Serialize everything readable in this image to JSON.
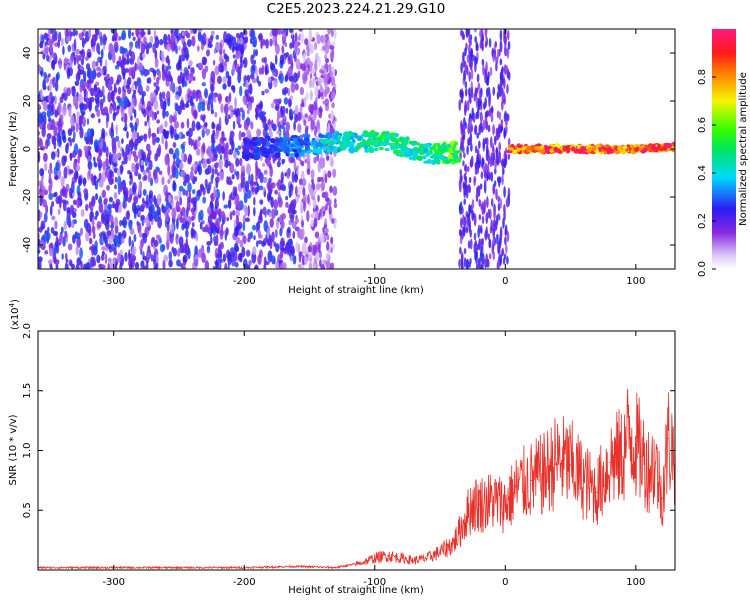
{
  "title": "C2E5.2023.224.21.29.G10",
  "colors": {
    "snr_line": "#e8312a",
    "axis": "#000000",
    "background": "#ffffff"
  },
  "spectrogram": {
    "xlabel": "Height of straight line (km)",
    "ylabel": "Frequency (Hz)",
    "xlim": [
      -358,
      130
    ],
    "ylim": [
      -50,
      50
    ],
    "xticks": [
      -300,
      -200,
      -100,
      0,
      100
    ],
    "xtick_labels": [
      "-300",
      "-200",
      "-100",
      "0",
      "100"
    ],
    "yticks": [
      -40,
      -20,
      0,
      20,
      40
    ],
    "ytick_labels": [
      "-40",
      "-20",
      "0",
      "20",
      "40"
    ]
  },
  "colorbar": {
    "label": "Normalized spectral amplitude",
    "range": [
      0,
      1
    ],
    "ticks": [
      0.0,
      0.2,
      0.4,
      0.6,
      0.8
    ],
    "tick_labels": [
      "0.0",
      "0.2",
      "0.4",
      "0.6",
      "0.8"
    ],
    "colormap": "rainbow (white-violet-blue-cyan-green-yellow-red-magenta)"
  },
  "chart_data": [
    {
      "type": "heatmap",
      "description_of_signal": "Normalized spectral amplitude vs straight-line height and frequency",
      "noise_region_x": [
        -358,
        -130
      ],
      "gap_region_x": [
        -35,
        3
      ],
      "signal_band": [
        {
          "x": -200,
          "freq": 0,
          "amplitude": 0.25
        },
        {
          "x": -170,
          "freq": 1,
          "amplitude": 0.3
        },
        {
          "x": -120,
          "freq": 3,
          "amplitude": 0.45
        },
        {
          "x": -90,
          "freq": 3,
          "amplitude": 0.5
        },
        {
          "x": -60,
          "freq": -2,
          "amplitude": 0.45
        },
        {
          "x": 5,
          "freq": 0,
          "amplitude": 0.9
        },
        {
          "x": 50,
          "freq": 0,
          "amplitude": 0.9
        },
        {
          "x": 100,
          "freq": 0,
          "amplitude": 0.9
        },
        {
          "x": 130,
          "freq": 1,
          "amplitude": 0.9
        }
      ],
      "xlabel": "Height of straight line (km)",
      "ylabel": "Frequency (Hz)",
      "xlim": [
        -358,
        130
      ],
      "ylim": [
        -50,
        50
      ]
    },
    {
      "type": "line",
      "series_color": "#e8312a",
      "xlabel": "Height of straight line (km)",
      "ylabel": "SNR (10 * v/v)",
      "scale_label": "(x10",
      "scale_exponent": "4",
      "scale_close": ")",
      "xlim": [
        -358,
        130
      ],
      "ylim": [
        0,
        2.0
      ],
      "xticks": [
        -300,
        -200,
        -100,
        0,
        100
      ],
      "xtick_labels": [
        "-300",
        "-200",
        "-100",
        "0",
        "100"
      ],
      "yticks": [
        0.5,
        1.0,
        1.5,
        2.0
      ],
      "ytick_labels": [
        "0.5",
        "1.0",
        "1.5",
        "2.0"
      ],
      "x": [
        -358,
        -300,
        -250,
        -200,
        -160,
        -130,
        -110,
        -100,
        -90,
        -80,
        -70,
        -60,
        -50,
        -40,
        -35,
        -30,
        -25,
        -20,
        -10,
        0,
        10,
        20,
        30,
        40,
        50,
        60,
        70,
        80,
        90,
        95,
        100,
        105,
        110,
        115,
        120,
        125,
        130
      ],
      "y": [
        0.02,
        0.02,
        0.02,
        0.02,
        0.03,
        0.02,
        0.06,
        0.1,
        0.12,
        0.1,
        0.08,
        0.1,
        0.15,
        0.22,
        0.32,
        0.45,
        0.55,
        0.55,
        0.58,
        0.55,
        0.7,
        0.75,
        0.8,
        0.92,
        0.88,
        0.75,
        0.65,
        0.9,
        0.95,
        1.15,
        1.05,
        0.95,
        0.85,
        0.9,
        0.6,
        1.1,
        0.95
      ]
    }
  ]
}
